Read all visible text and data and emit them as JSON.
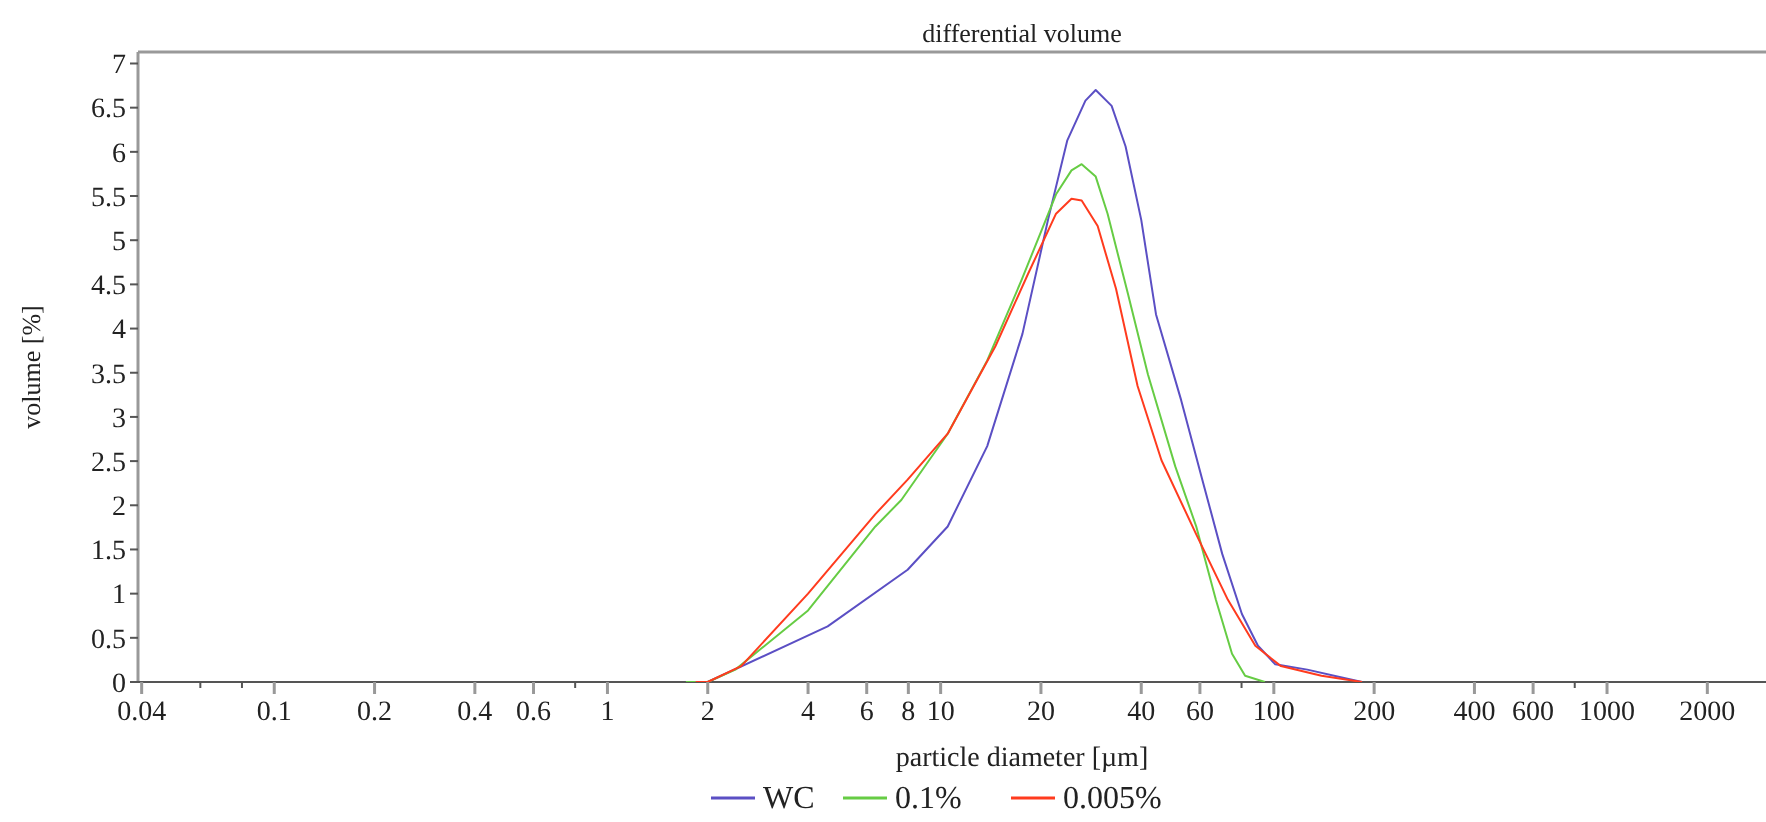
{
  "chart_data": {
    "type": "line",
    "title": "differential volume",
    "xlabel": "particle diameter [µm]",
    "ylabel": "volume [%]",
    "log": "x",
    "xlim": [
      0.039,
      3000
    ],
    "ylim": [
      0,
      7.13
    ],
    "xticks": [
      0.04,
      {
        "value": 0.06,
        "label": null
      },
      {
        "value": 0.08,
        "label": null
      },
      0.1,
      0.2,
      0.4,
      0.6,
      {
        "value": 0.8,
        "label": null
      },
      1,
      2,
      4,
      6,
      8,
      10,
      20,
      40,
      60,
      {
        "value": 80,
        "label": null
      },
      100,
      200,
      400,
      600,
      {
        "value": 800,
        "label": null
      },
      1000,
      2000
    ],
    "yticks": [
      0,
      0.5,
      1,
      1.5,
      2,
      2.5,
      3,
      3.5,
      4,
      4.5,
      5,
      5.5,
      6,
      6.5,
      7
    ],
    "grid": false,
    "legend": "bottom",
    "marker": "none",
    "line_style": "solid",
    "series": [
      {
        "name": "WC",
        "color": "#5b4fc4",
        "x": [
          1.9,
          2,
          4.58,
          7.96,
          10.5,
          13.8,
          17.6,
          21,
          24,
          27.2,
          29.2,
          32.6,
          35.9,
          40,
          44.3,
          52.7,
          61,
          70,
          80.2,
          89.6,
          101,
          126,
          160,
          184
        ],
        "values": [
          0,
          0,
          0.63,
          1.27,
          1.76,
          2.67,
          3.94,
          5.23,
          6.13,
          6.58,
          6.7,
          6.52,
          6.06,
          5.23,
          4.16,
          3.19,
          2.29,
          1.45,
          0.77,
          0.41,
          0.2,
          0.14,
          0.05,
          0
        ]
      },
      {
        "name": "0.1%",
        "color": "#66cc44",
        "x": [
          1.72,
          2,
          2.42,
          4,
          6.37,
          7.62,
          10.5,
          13.8,
          17.5,
          22.2,
          24.7,
          26.5,
          29.2,
          31.7,
          36.5,
          41.9,
          50.6,
          58.5,
          67,
          74.9,
          82,
          94
        ],
        "values": [
          0,
          0,
          0.14,
          0.81,
          1.76,
          2.06,
          2.81,
          3.64,
          4.55,
          5.52,
          5.79,
          5.86,
          5.72,
          5.3,
          4.39,
          3.48,
          2.44,
          1.76,
          0.93,
          0.32,
          0.07,
          0
        ]
      },
      {
        "name": "0.005%",
        "color": "#ff3b1e",
        "x": [
          1.84,
          2,
          2.52,
          4,
          6.37,
          7.96,
          10.5,
          14.6,
          18.3,
          22.2,
          24.7,
          26.5,
          29.6,
          33.6,
          39,
          46,
          58.5,
          72.8,
          88,
          105,
          139,
          184
        ],
        "values": [
          0,
          0,
          0.18,
          1,
          1.9,
          2.29,
          2.81,
          3.8,
          4.62,
          5.3,
          5.47,
          5.45,
          5.16,
          4.45,
          3.35,
          2.51,
          1.67,
          0.93,
          0.41,
          0.18,
          0.07,
          0
        ]
      }
    ]
  }
}
